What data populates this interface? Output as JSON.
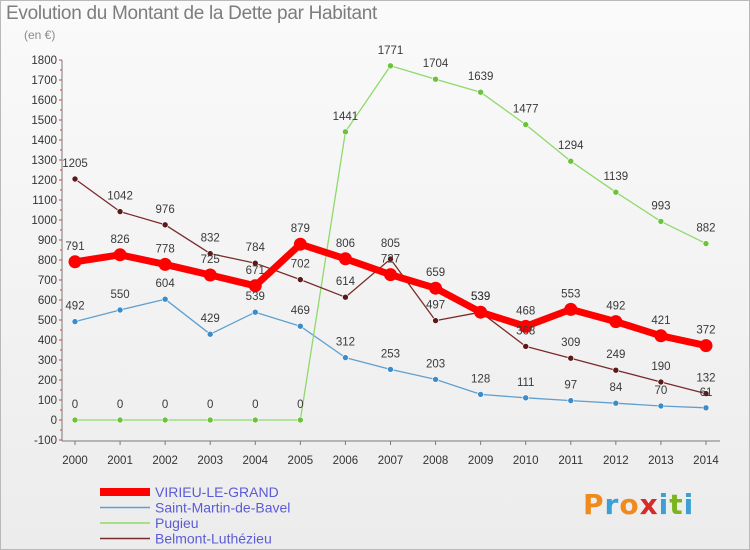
{
  "header": {
    "title": "Evolution du Montant de la Dette par Habitant",
    "unit": "(en €)"
  },
  "logo": {
    "text": "Proxiti",
    "colors": [
      "#f08a1c",
      "#3aa0d6",
      "#f08a1c",
      "#d62b2b",
      "#3aa0d6",
      "#7ab51d",
      "#3aa0d6"
    ]
  },
  "chart_data": {
    "type": "line",
    "title": "Evolution du Montant de la Dette par Habitant",
    "ylabel": "(en €)",
    "xlabel": "",
    "x": [
      "2000",
      "2001",
      "2002",
      "2003",
      "2004",
      "2005",
      "2006",
      "2007",
      "2008",
      "2009",
      "2010",
      "2011",
      "2012",
      "2013",
      "2014"
    ],
    "ylim": [
      -100,
      1800
    ],
    "yticks": [
      -100,
      0,
      100,
      200,
      300,
      400,
      500,
      600,
      700,
      800,
      900,
      1000,
      1100,
      1200,
      1300,
      1400,
      1500,
      1600,
      1700,
      1800
    ],
    "grid": false,
    "legend": "bottom-left",
    "series": [
      {
        "name": "VIRIEU-LE-GRAND",
        "color": "#ff0000",
        "point_color": "#ff0000",
        "values": [
          791,
          826,
          778,
          725,
          671,
          879,
          806,
          727,
          659,
          539,
          468,
          553,
          492,
          421,
          372
        ],
        "labels": [
          "791",
          "826",
          "778",
          "725",
          "671",
          "879",
          "806",
          "727",
          "659",
          "539",
          "468",
          "553",
          "492",
          "421",
          "372"
        ]
      },
      {
        "name": "Saint-Martin-de-Bavel",
        "color": "#5fa0d0",
        "point_color": "#3b8cc9",
        "values": [
          492,
          550,
          604,
          429,
          539,
          469,
          312,
          253,
          203,
          128,
          111,
          97,
          84,
          70,
          61
        ],
        "labels": [
          "492",
          "550",
          "604",
          "429",
          "539",
          "469",
          "312",
          "253",
          "203",
          "128",
          "111",
          "97",
          "84",
          "70",
          "61"
        ]
      },
      {
        "name": "Pugieu",
        "color": "#8fd96a",
        "point_color": "#6cc23a",
        "values": [
          0,
          0,
          0,
          0,
          0,
          0,
          1441,
          1771,
          1704,
          1639,
          1477,
          1294,
          1139,
          993,
          882
        ],
        "labels": [
          "0",
          "0",
          "0",
          "0",
          "0",
          "0",
          "1441",
          "1771",
          "1704",
          "1639",
          "1477",
          "1294",
          "1139",
          "993",
          "882"
        ]
      },
      {
        "name": "Belmont-Luthézieu",
        "color": "#7a2a2a",
        "point_color": "#5a1a1a",
        "values": [
          1205,
          1042,
          976,
          832,
          784,
          702,
          614,
          805,
          497,
          539,
          368,
          309,
          249,
          190,
          132
        ],
        "labels": [
          "1205",
          "1042",
          "976",
          "832",
          "784",
          "702",
          "614",
          "805",
          "497",
          "539",
          "368",
          "309",
          "249",
          "190",
          "132"
        ]
      }
    ]
  }
}
